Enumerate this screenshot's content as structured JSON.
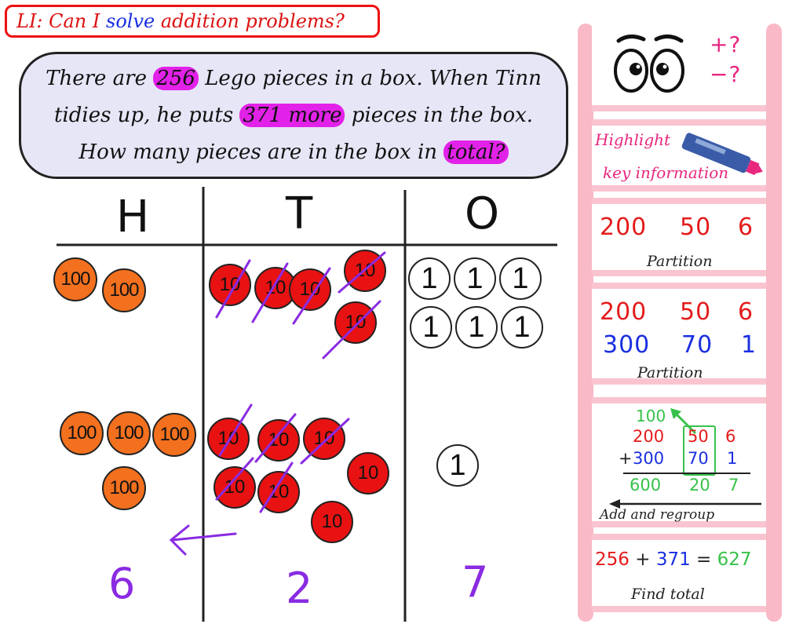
{
  "title": {
    "prefix": "LI: Can I ",
    "highlight": "solve",
    "suffix": " addition problems?"
  },
  "problem": {
    "line1_a": "There are ",
    "line1_hl": "256",
    "line1_b": " Lego pieces in a box. When Tinn",
    "line2_a": "tidies up, he puts ",
    "line2_hl": "371 more",
    "line2_b": " pieces in the box.",
    "line3_a": "How many pieces are in the box in ",
    "line3_hl": "total?"
  },
  "columns": {
    "h": "H",
    "t": "T",
    "o": "O"
  },
  "counters": {
    "hundred": "100",
    "ten": "10",
    "one": "1"
  },
  "answers": {
    "h": "6",
    "t": "2",
    "o": "7"
  },
  "sidebar": {
    "symbols": {
      "plus": "+?",
      "minus": "−?"
    },
    "highlight": {
      "line1": "Highlight",
      "line2": "key information"
    },
    "partition1": {
      "h": "200",
      "t": "50",
      "o": "6",
      "label": "Partition"
    },
    "partition2": {
      "row1": [
        "200",
        "50",
        "6"
      ],
      "row2": [
        "300",
        "70",
        "1"
      ],
      "label": "Partition"
    },
    "regroup": {
      "carry": "100",
      "row1": [
        "200",
        "50",
        "6"
      ],
      "plus": "+",
      "row2": [
        "300",
        "70",
        "1"
      ],
      "row3": [
        "600",
        "20",
        "7"
      ],
      "label": "Add and regroup"
    },
    "total": {
      "a": "256",
      "op": "+",
      "b": "371",
      "eq": "=",
      "c": "627",
      "label": "Find total"
    }
  },
  "colors": {
    "accent_red": "#e41b1b",
    "accent_blue": "#1a2fe0",
    "accent_green": "#36c24a",
    "highlight_magenta": "#e222e8",
    "answer_purple": "#8a2be2"
  }
}
